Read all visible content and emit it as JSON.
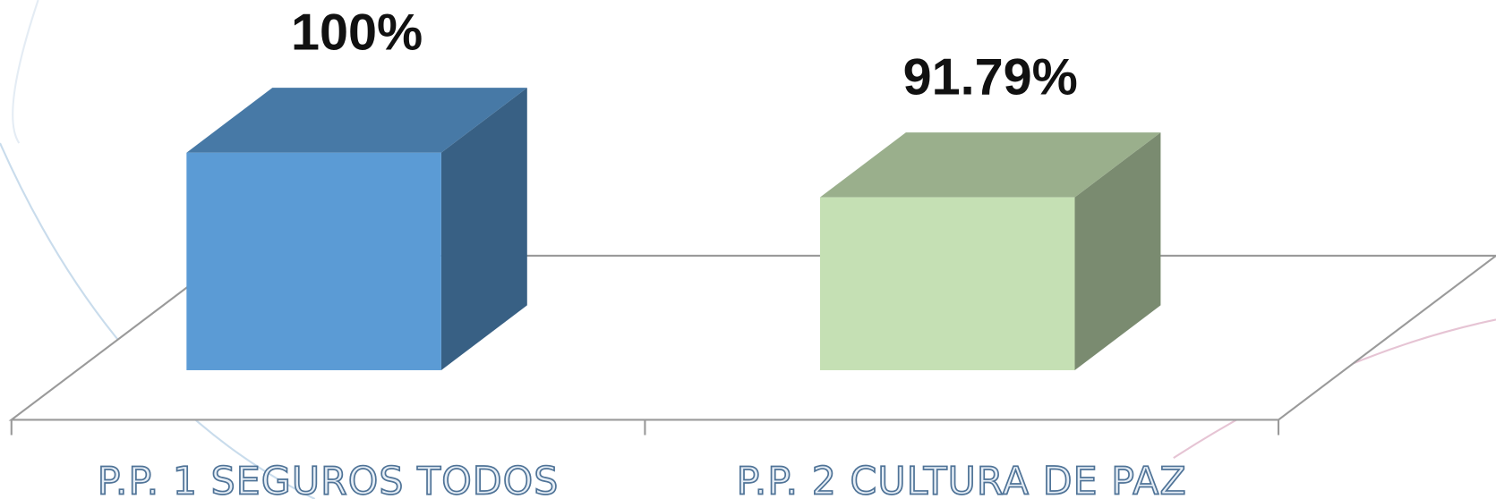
{
  "chart_data": {
    "type": "bar3d",
    "categories": [
      "P.P. 1 SEGUROS TODOS",
      "P.P. 2 CULTURA DE PAZ"
    ],
    "values": [
      100,
      91.79
    ],
    "value_labels": [
      "100%",
      "91.79%"
    ],
    "colors": [
      "#5b9bd5",
      "#c5e0b4"
    ],
    "ylim": [
      60,
      100
    ]
  }
}
